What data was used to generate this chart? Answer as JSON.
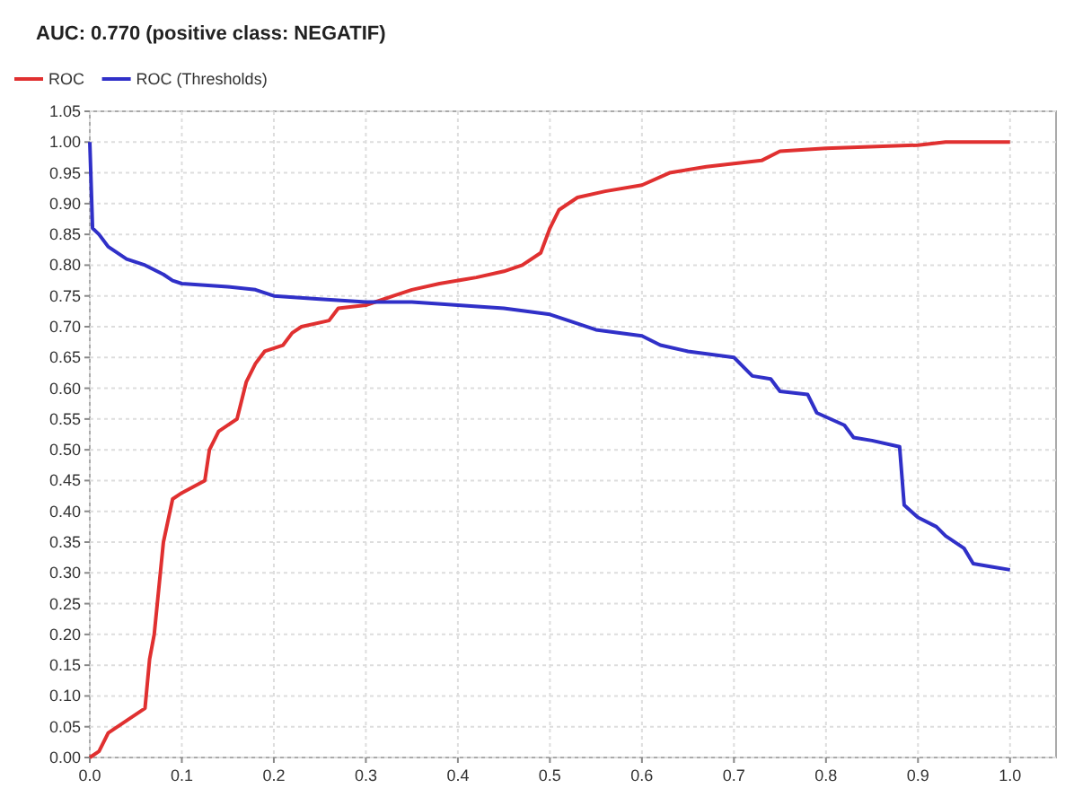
{
  "chart_data": {
    "type": "line",
    "title": "AUC: 0.770 (positive class: NEGATIF)",
    "xlim": [
      0,
      1.05
    ],
    "ylim": [
      0,
      1.05
    ],
    "xticks": [
      {
        "value": 0,
        "label": "0.0"
      },
      0.1,
      0.2,
      0.3,
      0.4,
      0.5,
      0.6,
      0.7,
      0.8,
      0.9,
      {
        "value": 1,
        "label": "1.0"
      }
    ],
    "yticks": [
      {
        "value": 0,
        "label": "0.00"
      },
      0.05,
      {
        "value": 0.1,
        "label": "0.10"
      },
      0.15,
      {
        "value": 0.2,
        "label": "0.20"
      },
      0.25,
      {
        "value": 0.3,
        "label": "0.30"
      },
      0.35,
      {
        "value": 0.4,
        "label": "0.40"
      },
      0.45,
      {
        "value": 0.5,
        "label": "0.50"
      },
      0.55,
      {
        "value": 0.6,
        "label": "0.60"
      },
      0.65,
      {
        "value": 0.7,
        "label": "0.70"
      },
      0.75,
      {
        "value": 0.8,
        "label": "0.80"
      },
      0.85,
      {
        "value": 0.9,
        "label": "0.90"
      },
      0.95,
      {
        "value": 1,
        "label": "1.00"
      },
      1.05
    ],
    "grid": true,
    "legend": "top left",
    "marker": "none",
    "line_style": "solid",
    "series": [
      {
        "name": "ROC",
        "color": "#e03030",
        "x": [
          0,
          0.01,
          0.02,
          0.04,
          0.06,
          0.065,
          0.07,
          0.08,
          0.09,
          0.1,
          0.125,
          0.13,
          0.14,
          0.16,
          0.17,
          0.18,
          0.19,
          0.21,
          0.22,
          0.23,
          0.26,
          0.27,
          0.3,
          0.33,
          0.35,
          0.38,
          0.42,
          0.45,
          0.47,
          0.49,
          0.5,
          0.51,
          0.53,
          0.56,
          0.6,
          0.63,
          0.67,
          0.73,
          0.75,
          0.8,
          0.9,
          0.93,
          1.0
        ],
        "values": [
          0,
          0.01,
          0.04,
          0.06,
          0.08,
          0.16,
          0.2,
          0.35,
          0.42,
          0.43,
          0.45,
          0.5,
          0.53,
          0.55,
          0.61,
          0.64,
          0.66,
          0.67,
          0.69,
          0.7,
          0.71,
          0.73,
          0.735,
          0.75,
          0.76,
          0.77,
          0.78,
          0.79,
          0.8,
          0.82,
          0.86,
          0.89,
          0.91,
          0.92,
          0.93,
          0.95,
          0.96,
          0.97,
          0.985,
          0.99,
          0.995,
          1.0,
          1.0
        ]
      },
      {
        "name": "ROC (Thresholds)",
        "color": "#3030c8",
        "x": [
          0,
          0.003,
          0.01,
          0.02,
          0.04,
          0.06,
          0.08,
          0.09,
          0.1,
          0.15,
          0.18,
          0.2,
          0.25,
          0.3,
          0.35,
          0.4,
          0.45,
          0.5,
          0.52,
          0.55,
          0.6,
          0.62,
          0.65,
          0.7,
          0.72,
          0.74,
          0.75,
          0.78,
          0.79,
          0.82,
          0.83,
          0.85,
          0.88,
          0.885,
          0.9,
          0.92,
          0.93,
          0.95,
          0.96,
          0.98,
          1.0
        ],
        "values": [
          1.0,
          0.86,
          0.85,
          0.83,
          0.81,
          0.8,
          0.785,
          0.775,
          0.77,
          0.765,
          0.76,
          0.75,
          0.745,
          0.74,
          0.74,
          0.735,
          0.73,
          0.72,
          0.71,
          0.695,
          0.685,
          0.67,
          0.66,
          0.65,
          0.62,
          0.615,
          0.595,
          0.59,
          0.56,
          0.54,
          0.52,
          0.515,
          0.505,
          0.41,
          0.39,
          0.375,
          0.36,
          0.34,
          0.315,
          0.31,
          0.305
        ]
      }
    ]
  }
}
